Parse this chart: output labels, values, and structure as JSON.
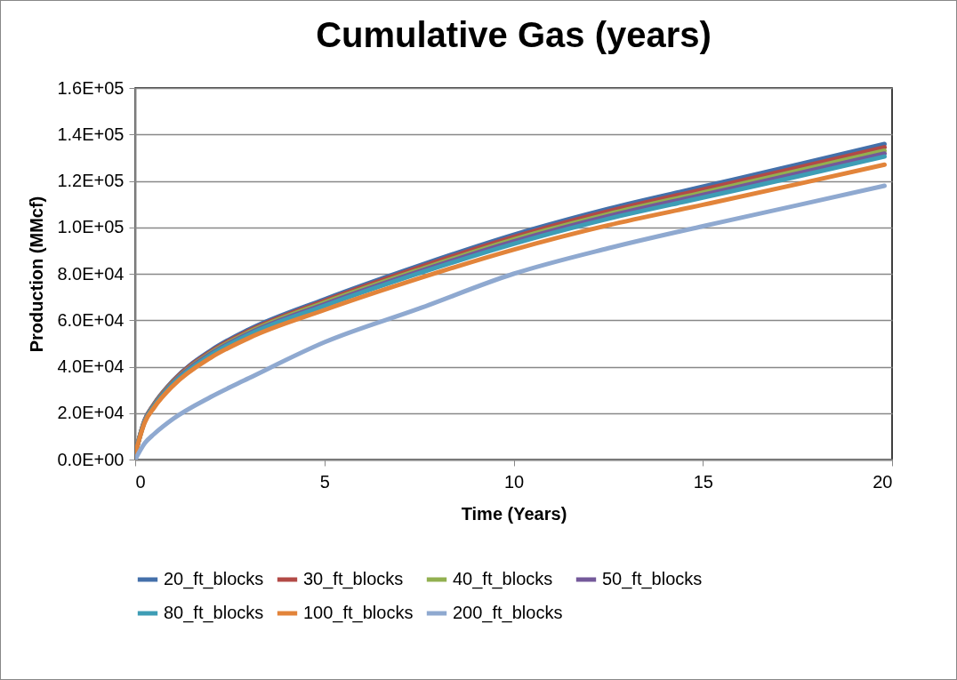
{
  "chart_data": {
    "type": "line",
    "title": "Cumulative Gas (years)",
    "xlabel": "Time (Years)",
    "ylabel": "Production (MMcf)",
    "x": [
      0,
      0.25,
      0.5,
      1,
      2,
      3,
      5,
      7.5,
      10,
      12.5,
      15,
      17.5,
      19.8
    ],
    "xlim": [
      0,
      20
    ],
    "xticks": [
      0,
      5,
      10,
      15,
      20
    ],
    "ylim": [
      0,
      160000
    ],
    "yticks": [
      {
        "value": 0,
        "label": "0.0E+00"
      },
      {
        "value": 20000,
        "label": "2.0E+04"
      },
      {
        "value": 40000,
        "label": "4.0E+04"
      },
      {
        "value": 60000,
        "label": "6.0E+04"
      },
      {
        "value": 80000,
        "label": "8.0E+04"
      },
      {
        "value": 100000,
        "label": "1.0E+05"
      },
      {
        "value": 120000,
        "label": "1.2E+05"
      },
      {
        "value": 140000,
        "label": "1.4E+05"
      },
      {
        "value": 160000,
        "label": "1.6E+05"
      }
    ],
    "grid": "y",
    "legend": "bottom",
    "marker": "none",
    "line_style": "solid",
    "series": [
      {
        "name": "20_ft_blocks",
        "color": "#4470aa",
        "values": [
          2500,
          17000,
          24000,
          34000,
          47000,
          56000,
          69000,
          83500,
          96800,
          108000,
          117500,
          127000,
          135900
        ]
      },
      {
        "name": "30_ft_blocks",
        "color": "#b24a46",
        "values": [
          2500,
          16800,
          23800,
          33700,
          46500,
          55400,
          68300,
          82700,
          95800,
          106900,
          116300,
          125700,
          134500
        ]
      },
      {
        "name": "40_ft_blocks",
        "color": "#92b050",
        "values": [
          2400,
          16600,
          23500,
          33300,
          46000,
          54800,
          67600,
          81700,
          94800,
          105700,
          115000,
          124300,
          133000
        ]
      },
      {
        "name": "50_ft_blocks",
        "color": "#74599a",
        "values": [
          2400,
          16500,
          23300,
          33000,
          45600,
          54300,
          66900,
          81000,
          93900,
          104800,
          114000,
          123200,
          131800
        ]
      },
      {
        "name": "80_ft_blocks",
        "color": "#3e9db5",
        "values": [
          2400,
          16300,
          23000,
          32600,
          45100,
          53800,
          66200,
          80200,
          92900,
          103700,
          112800,
          121900,
          130500
        ]
      },
      {
        "name": "100_ft_blocks",
        "color": "#e2843a",
        "values": [
          2300,
          15900,
          22400,
          31800,
          43900,
          52300,
          64400,
          78000,
          90400,
          100900,
          109700,
          118600,
          127000
        ]
      },
      {
        "name": "200_ft_blocks",
        "color": "#8fa9d0",
        "values": [
          0,
          7000,
          11000,
          17500,
          27000,
          35000,
          50500,
          65000,
          80000,
          91000,
          100500,
          109500,
          117900
        ]
      }
    ]
  }
}
